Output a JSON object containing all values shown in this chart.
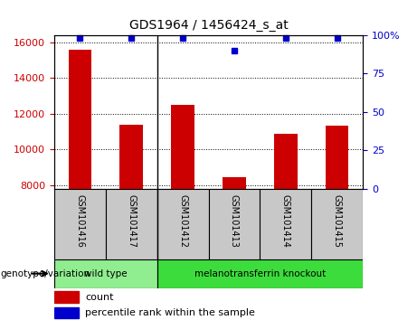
{
  "title": "GDS1964 / 1456424_s_at",
  "samples": [
    "GSM101416",
    "GSM101417",
    "GSM101412",
    "GSM101413",
    "GSM101414",
    "GSM101415"
  ],
  "counts": [
    15600,
    11400,
    12500,
    8450,
    10900,
    11350
  ],
  "percentile_ranks": [
    98,
    98,
    98,
    90,
    98,
    98
  ],
  "ylim_left": [
    7800,
    16400
  ],
  "ylim_right": [
    0,
    100
  ],
  "yticks_left": [
    8000,
    10000,
    12000,
    14000,
    16000
  ],
  "yticks_right": [
    0,
    25,
    50,
    75,
    100
  ],
  "bar_color": "#cc0000",
  "dot_color": "#0000cc",
  "groups": [
    {
      "label": "wild type",
      "indices": [
        0,
        1
      ],
      "color": "#90ee90"
    },
    {
      "label": "melanotransferrin knockout",
      "indices": [
        2,
        3,
        4,
        5
      ],
      "color": "#3ddc3d"
    }
  ],
  "group_label": "genotype/variation",
  "legend_count_label": "count",
  "legend_percentile_label": "percentile rank within the sample",
  "bar_width": 0.45,
  "separator_positions": [
    2
  ],
  "background_color": "#ffffff",
  "tick_label_area_color": "#c8c8c8"
}
